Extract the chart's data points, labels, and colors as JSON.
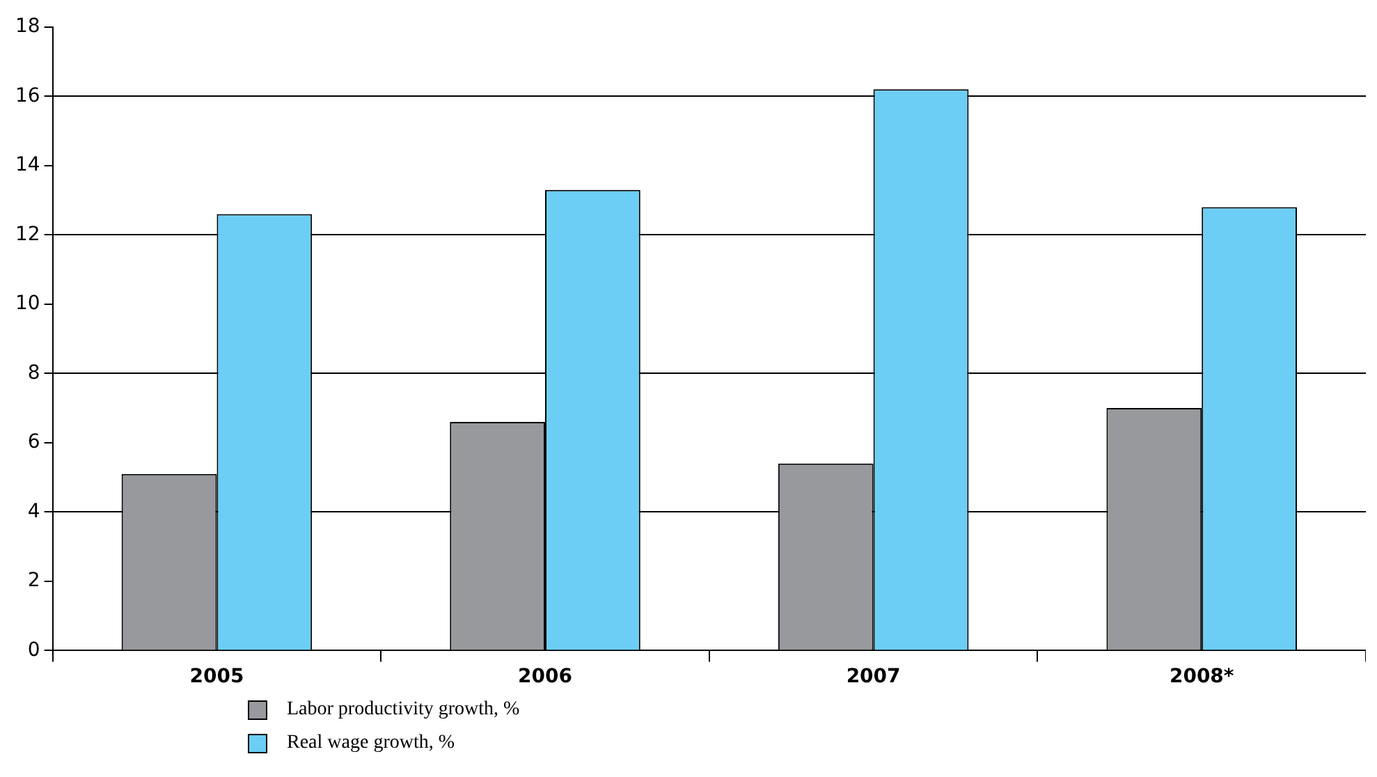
{
  "chart_data": {
    "type": "bar",
    "categories": [
      "2005",
      "2006",
      "2007",
      "2008*"
    ],
    "series": [
      {
        "name": "Labor productivity growth, %",
        "color": "#97999c",
        "values": [
          5.1,
          6.6,
          5.4,
          7.0
        ]
      },
      {
        "name": "Real wage growth, %",
        "color": "#6ccef5",
        "values": [
          12.6,
          13.3,
          16.2,
          12.8
        ]
      }
    ],
    "ylim": [
      0,
      18
    ],
    "yticks": [
      0,
      2,
      4,
      6,
      8,
      10,
      12,
      14,
      16,
      18
    ],
    "grid": "y",
    "legend": "bottom left"
  }
}
